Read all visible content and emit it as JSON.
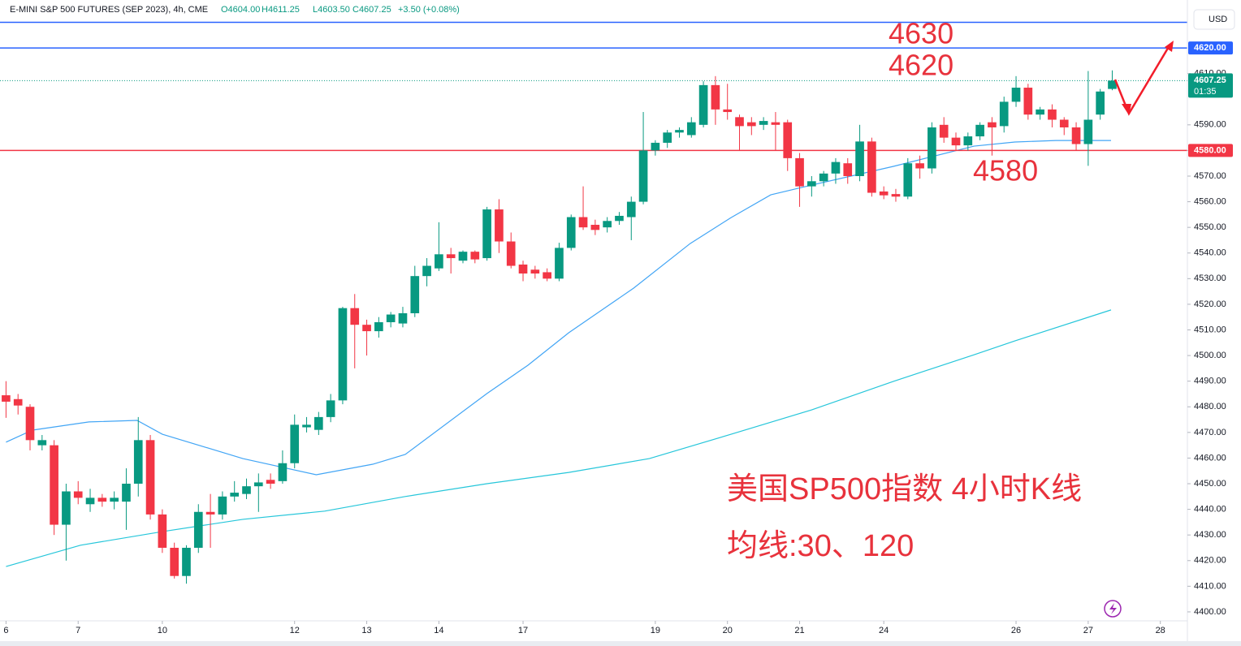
{
  "chart_data": {
    "type": "candlestick",
    "title": "E-MINI S&P 500 FUTURES (SEP 2023), 4h, CME",
    "ohlc_labels": [
      "O4604.00",
      "H4611.25",
      "L4603.50",
      "C4607.25",
      "+3.50 (+0.08%)"
    ],
    "currency": "USD",
    "up_color": "#089981",
    "down_color": "#f23645",
    "open": [
      4484.5,
      4483,
      4480,
      4465,
      4465,
      4434,
      4447,
      4442,
      4444.5,
      4443,
      4443,
      4450,
      4467,
      4438,
      4425,
      4414,
      4425,
      4439,
      4438,
      4445,
      4446,
      4449,
      4451.5,
      4451,
      4458,
      4472,
      4471,
      4476,
      4482.5,
      4518.5,
      4512,
      4509.5,
      4513,
      4512.5,
      4516.5,
      4531,
      4534,
      4539.5,
      4537,
      4540.5,
      4538,
      4557,
      4544.5,
      4535.5,
      4533.5,
      4532.5,
      4530,
      4542,
      4554,
      4551,
      4550,
      4552.5,
      4554,
      4560,
      4580,
      4583,
      4587,
      4586,
      4590,
      4605.5,
      4596,
      4593,
      4591,
      4590,
      4591,
      4591,
      4577,
      4566,
      4568,
      4571,
      4575,
      4570,
      4583.5,
      4564,
      4563,
      4562,
      4575,
      4573,
      4590,
      4585,
      4582,
      4585.5,
      4591,
      4589.5,
      4599,
      4604.5,
      4594,
      4596,
      4592,
      4589,
      4582.5,
      4594,
      4604
    ],
    "close": [
      4482,
      4480.5,
      4467,
      4467,
      4434,
      4447,
      4444.5,
      4444.5,
      4443,
      4444.5,
      4450,
      4467,
      4438,
      4425,
      4414,
      4425,
      4439,
      4438,
      4445,
      4446.5,
      4449,
      4450.5,
      4450,
      4458,
      4473,
      4473,
      4476,
      4482.5,
      4518.5,
      4512,
      4509.5,
      4513,
      4516,
      4516.5,
      4531,
      4535,
      4539.5,
      4538,
      4540.5,
      4537.5,
      4557,
      4544.5,
      4535,
      4532,
      4532,
      4530,
      4542,
      4554,
      4550,
      4549,
      4552.5,
      4554.5,
      4560,
      4580,
      4583,
      4587,
      4588,
      4591,
      4605.5,
      4596,
      4595,
      4589.5,
      4589.5,
      4591.5,
      4590,
      4577,
      4566,
      4568,
      4571,
      4575.5,
      4570,
      4583.5,
      4563.5,
      4562.5,
      4562,
      4575,
      4573,
      4589,
      4585,
      4582,
      4585.5,
      4590,
      4589,
      4599,
      4604.5,
      4594,
      4596,
      4592,
      4589,
      4582.5,
      4592,
      4603,
      4607.25
    ],
    "high": [
      4490,
      4485,
      4481,
      4469,
      4467,
      4450,
      4451,
      4448,
      4446,
      4447,
      4456,
      4476,
      4469,
      4440,
      4427,
      4426,
      4442,
      4446,
      4447,
      4451,
      4452,
      4454,
      4454,
      4463,
      4477,
      4476,
      4478,
      4485,
      4519,
      4524,
      4514,
      4515,
      4517,
      4519,
      4535,
      4538,
      4552,
      4542,
      4541,
      4541,
      4558,
      4561,
      4548,
      4537,
      4535,
      4534,
      4544,
      4555,
      4566,
      4553,
      4554,
      4556,
      4562,
      4595,
      4584,
      4588,
      4589,
      4593,
      4607,
      4609,
      4606,
      4594,
      4593,
      4593,
      4595,
      4592,
      4579,
      4570,
      4572,
      4577,
      4577,
      4590,
      4585,
      4566,
      4565,
      4577,
      4578,
      4591,
      4593,
      4587,
      4587,
      4591,
      4593,
      4601,
      4609,
      4606,
      4597,
      4598,
      4593,
      4591,
      4611,
      4604,
      4611.25
    ],
    "low": [
      4475.7,
      4477,
      4463,
      4463,
      4430,
      4420,
      4442,
      4439,
      4441,
      4440,
      4432,
      4445,
      4436,
      4423,
      4413,
      4411,
      4423,
      4425,
      4436,
      4443,
      4444,
      4439,
      4448,
      4450,
      4456,
      4470,
      4469,
      4474,
      4481,
      4495,
      4500,
      4507,
      4511,
      4511,
      4515,
      4527,
      4533,
      4532,
      4536,
      4536,
      4537,
      4540,
      4534,
      4529,
      4530,
      4529,
      4529,
      4541,
      4549,
      4547,
      4548,
      4551,
      4545,
      4559,
      4578,
      4581,
      4585,
      4585,
      4589,
      4590,
      4592,
      4580,
      4586,
      4588,
      4580,
      4572,
      4558,
      4562,
      4566,
      4567,
      4567,
      4568,
      4562,
      4561,
      4560,
      4561,
      4569,
      4571,
      4583,
      4580,
      4580,
      4584,
      4578,
      4587,
      4597,
      4592,
      4592,
      4589,
      4586,
      4580,
      4574,
      4592,
      4603.5
    ],
    "series": [
      {
        "color": "#42a5f5",
        "x": [
          0,
          2.2,
          6.9,
          10.9,
          13,
          19.7,
          25.8,
          30.5,
          33.2,
          40,
          43.4,
          46.8,
          52.2,
          56.9,
          60.3,
          63.6,
          67,
          73.8,
          80.5,
          83.9,
          87.3,
          91.9
        ],
        "values": [
          4466.2,
          4470.9,
          4474.1,
          4474.7,
          4469.3,
          4459.8,
          4453.5,
          4457.6,
          4461.4,
          4485.2,
          4496.2,
          4508.9,
          4526.3,
          4543.7,
          4553.8,
          4562.7,
          4566.5,
          4573.8,
          4581.7,
          4583.3,
          4583.9,
          4583.9
        ]
      },
      {
        "color": "#26c6da",
        "x": [
          0,
          6.2,
          13,
          19.7,
          26.5,
          33.2,
          40,
          46.8,
          53.5,
          60.3,
          67,
          73.8,
          80.5,
          83.9,
          91.9
        ],
        "values": [
          4417.7,
          4426,
          4431.3,
          4436.1,
          4439.3,
          4445,
          4450,
          4454.4,
          4459.8,
          4469.3,
          4478.8,
          4489.9,
          4500.3,
          4505.7,
          4517.8
        ]
      }
    ],
    "hlines": [
      {
        "value": 4630,
        "color": "#2962ff"
      },
      {
        "value": 4620,
        "color": "#2962ff",
        "label": "4620.00"
      },
      {
        "value": 4580,
        "color": "#f23645",
        "label": "4580.00"
      }
    ],
    "last_price": {
      "value": 4607.25,
      "label": "4607.25",
      "countdown": "01:35"
    },
    "annotations": [
      "4630",
      "4620",
      "4580",
      "美国SP500指数 4小时K线",
      "均线:30、120"
    ],
    "xlim": [
      -0.5,
      98.25
    ],
    "xticks": [
      {
        "value": 0,
        "label": "6"
      },
      {
        "value": 6,
        "label": "7"
      },
      {
        "value": 13,
        "label": "10"
      },
      {
        "value": 24,
        "label": "12"
      },
      {
        "value": 30,
        "label": "13"
      },
      {
        "value": 36,
        "label": "14"
      },
      {
        "value": 43,
        "label": "17"
      },
      {
        "value": 54,
        "label": "19"
      },
      {
        "value": 60,
        "label": "20"
      },
      {
        "value": 66,
        "label": "21"
      },
      {
        "value": 73,
        "label": "24"
      },
      {
        "value": 84,
        "label": "26"
      },
      {
        "value": 90,
        "label": "27"
      },
      {
        "value": 96,
        "label": "28"
      }
    ],
    "ylim": [
      4396.5,
      4638.7
    ],
    "yticks": [
      {
        "value": 4400,
        "label": "4400.00"
      },
      {
        "value": 4410,
        "label": "4410.00"
      },
      {
        "value": 4420,
        "label": "4420.00"
      },
      {
        "value": 4430,
        "label": "4430.00"
      },
      {
        "value": 4440,
        "label": "4440.00"
      },
      {
        "value": 4450,
        "label": "4450.00"
      },
      {
        "value": 4460,
        "label": "4460.00"
      },
      {
        "value": 4470,
        "label": "4470.00"
      },
      {
        "value": 4480,
        "label": "4480.00"
      },
      {
        "value": 4490,
        "label": "4490.00"
      },
      {
        "value": 4500,
        "label": "4500.00"
      },
      {
        "value": 4510,
        "label": "4510.00"
      },
      {
        "value": 4520,
        "label": "4520.00"
      },
      {
        "value": 4530,
        "label": "4530.00"
      },
      {
        "value": 4540,
        "label": "4540.00"
      },
      {
        "value": 4550,
        "label": "4550.00"
      },
      {
        "value": 4560,
        "label": "4560.00"
      },
      {
        "value": 4570,
        "label": "4570.00"
      },
      {
        "value": 4580,
        "label": "4580.00"
      },
      {
        "value": 4590,
        "label": "4590.00"
      },
      {
        "value": 4610,
        "label": "4610.00"
      }
    ],
    "grid": false
  }
}
